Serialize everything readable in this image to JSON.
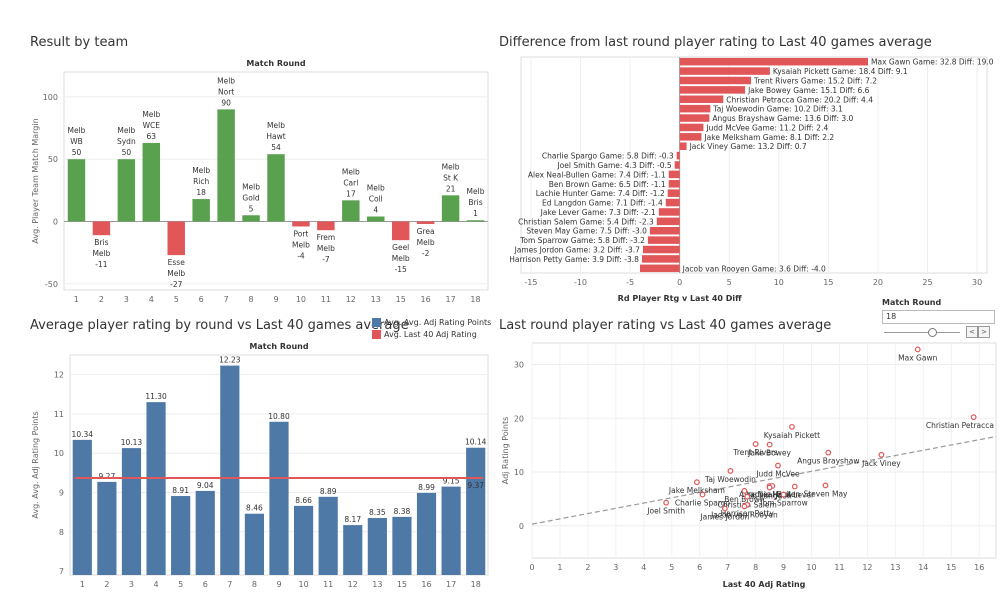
{
  "titles": {
    "tl": "Result by team",
    "tr": "Difference from last round player rating to Last 40 games average",
    "bl": "Average player rating by round vs Last 40 games average",
    "br": "Last round player rating vs Last 40 games average"
  },
  "filter": {
    "title": "Match Round",
    "value": "18",
    "prev_label": "<",
    "next_label": ">"
  },
  "chart_data": [
    {
      "type": "bar",
      "header": "Match Round",
      "ylabel": "Avg. Player Team Match Margin",
      "ylim": [
        -55,
        120
      ],
      "yticks": [
        -50,
        0,
        50,
        100
      ],
      "categories": [
        "1",
        "2",
        "3",
        "4",
        "5",
        "6",
        "7",
        "8",
        "9",
        "10",
        "11",
        "12",
        "13",
        "15",
        "16",
        "17",
        "18"
      ],
      "values": [
        50,
        -11,
        50,
        63,
        -27,
        18,
        90,
        5,
        54,
        -4,
        -7,
        17,
        4,
        -15,
        -2,
        21,
        1
      ],
      "bar_labels": [
        [
          "Melb",
          "WB",
          "50"
        ],
        [
          "Bris",
          "Melb",
          "-11"
        ],
        [
          "Melb",
          "Sydn",
          "50"
        ],
        [
          "Melb",
          "WCE",
          "63"
        ],
        [
          "Esse",
          "Melb",
          "-27"
        ],
        [
          "Melb",
          "Rich",
          "18"
        ],
        [
          "Melb",
          "Nort",
          "90"
        ],
        [
          "Melb",
          "Gold",
          "5"
        ],
        [
          "Melb",
          "Hawt",
          "54"
        ],
        [
          "Port",
          "Melb",
          "-4"
        ],
        [
          "Frem",
          "Melb",
          "-7"
        ],
        [
          "Melb",
          "Carl",
          "17"
        ],
        [
          "Melb",
          "Coll",
          "4"
        ],
        [
          "Geel",
          "Melb",
          "-15"
        ],
        [
          "Grea",
          "Melb",
          "-2"
        ],
        [
          "Melb",
          "St K",
          "21"
        ],
        [
          "Melb",
          "Bris",
          "1"
        ]
      ],
      "colors": {
        "win": "#59a14f",
        "loss": "#e15759"
      }
    },
    {
      "type": "bar",
      "orientation": "horizontal",
      "xlabel": "Rd Player Rtg v Last 40 Diff",
      "xlim": [
        -16,
        31
      ],
      "xticks": [
        -15,
        -10,
        -5,
        0,
        5,
        10,
        15,
        20,
        25,
        30
      ],
      "labels": [
        "Max Gawn Game: 32.8 Diff: 19.0",
        "Kysaiah Pickett Game: 18.4 Diff: 9.1",
        "Trent Rivers Game: 15.2 Diff: 7.2",
        "Jake Bowey Game: 15.1 Diff: 6.6",
        "Christian Petracca Game: 20.2 Diff: 4.4",
        "Taj Woewodin Game: 10.2 Diff: 3.1",
        "Angus Brayshaw Game: 13.6 Diff: 3.0",
        "Judd McVee Game: 11.2 Diff: 2.4",
        "Jake Melksham Game: 8.1 Diff: 2.2",
        "Jack Viney Game: 13.2 Diff: 0.7",
        "Charlie Spargo Game: 5.8 Diff: -0.3",
        "Joel Smith Game: 4.3 Diff: -0.5",
        "Alex Neal-Bullen Game: 7.4 Diff: -1.1",
        "Ben Brown Game: 6.5 Diff: -1.1",
        "Lachie Hunter Game: 7.4 Diff: -1.2",
        "Ed Langdon Game: 7.1 Diff: -1.4",
        "Jake Lever Game: 7.3 Diff: -2.1",
        "Christian Salem Game: 5.4 Diff: -2.3",
        "Steven May Game: 7.5 Diff: -3.0",
        "Tom Sparrow Game: 5.8 Diff: -3.2",
        "James Jordon Game: 3.2 Diff: -3.7",
        "Harrison Petty Game: 3.9 Diff: -3.8",
        "Jacob van Rooyen Game: 3.6 Diff: -4.0"
      ],
      "values": [
        19.0,
        9.1,
        7.2,
        6.6,
        4.4,
        3.1,
        3.0,
        2.4,
        2.2,
        0.7,
        -0.3,
        -0.5,
        -1.1,
        -1.1,
        -1.2,
        -1.4,
        -2.1,
        -2.3,
        -3.0,
        -3.2,
        -3.7,
        -3.8,
        -4.0
      ],
      "color": "#e15759"
    },
    {
      "type": "bar",
      "header": "Match Round",
      "ylabel": "Avg. Avg. Adj Rating Points",
      "ylim": [
        6.9,
        12.5
      ],
      "yticks": [
        7,
        8,
        9,
        10,
        11,
        12
      ],
      "categories": [
        "1",
        "2",
        "3",
        "4",
        "5",
        "6",
        "7",
        "8",
        "9",
        "10",
        "11",
        "12",
        "13",
        "15",
        "16",
        "17",
        "18"
      ],
      "values": [
        10.34,
        9.27,
        10.13,
        11.3,
        8.91,
        9.04,
        12.23,
        8.46,
        10.8,
        8.66,
        8.89,
        8.17,
        8.35,
        8.38,
        8.99,
        9.15,
        10.14
      ],
      "value_labels": [
        "10.34",
        "9.27",
        "10.13",
        "11.30",
        "8.91",
        "9.04",
        "12.23",
        "8.46",
        "10.80",
        "8.66",
        "8.89",
        "8.17",
        "8.35",
        "8.38",
        "8.99",
        "9.15",
        "10.14"
      ],
      "line": {
        "name": "Avg. Last 40 Adj Rating",
        "value": 9.37,
        "label": "9.37"
      },
      "legend": [
        {
          "name": "Avg. Avg. Adj Rating Points",
          "color": "#4e79a7"
        },
        {
          "name": "Avg. Last 40 Adj Rating",
          "color": "#e15759"
        }
      ],
      "colors": {
        "bar": "#4e79a7",
        "line": "#e15759"
      }
    },
    {
      "type": "scatter",
      "xlabel": "Last 40 Adj Rating",
      "ylabel": "Adj Rating Points",
      "xlim": [
        0,
        16.6
      ],
      "ylim": [
        -6,
        34
      ],
      "xticks": [
        0,
        1,
        2,
        3,
        4,
        5,
        6,
        7,
        8,
        9,
        10,
        11,
        12,
        13,
        14,
        15,
        16
      ],
      "yticks": [
        0,
        10,
        20,
        30
      ],
      "trendline": {
        "x": [
          0,
          16.6
        ],
        "y": [
          0.3,
          16.6
        ]
      },
      "points": [
        {
          "name": "Max Gawn",
          "x": 13.8,
          "y": 32.8
        },
        {
          "name": "Christian Petracca",
          "x": 15.8,
          "y": 20.2
        },
        {
          "name": "Kysaiah Pickett",
          "x": 9.3,
          "y": 18.4
        },
        {
          "name": "Trent Rivers",
          "x": 8.0,
          "y": 15.2
        },
        {
          "name": "Jake Bowey",
          "x": 8.5,
          "y": 15.1
        },
        {
          "name": "Angus Brayshaw",
          "x": 10.6,
          "y": 13.6
        },
        {
          "name": "Jack Viney",
          "x": 12.5,
          "y": 13.2
        },
        {
          "name": "Judd McVee",
          "x": 8.8,
          "y": 11.2
        },
        {
          "name": "Taj Woewodin",
          "x": 7.1,
          "y": 10.2
        },
        {
          "name": "Jake Melksham",
          "x": 5.9,
          "y": 8.1
        },
        {
          "name": "Alex Neal-Bullen",
          "x": 8.5,
          "y": 7.4
        },
        {
          "name": "Lachie Hunter",
          "x": 8.6,
          "y": 7.4
        },
        {
          "name": "Ed Langdon",
          "x": 8.5,
          "y": 7.1
        },
        {
          "name": "Jake Lever",
          "x": 9.4,
          "y": 7.3
        },
        {
          "name": "Steven May",
          "x": 10.5,
          "y": 7.5
        },
        {
          "name": "Ben Brown",
          "x": 7.6,
          "y": 6.5
        },
        {
          "name": "Tom Sparrow",
          "x": 9.0,
          "y": 5.8
        },
        {
          "name": "Charlie Spargo",
          "x": 6.1,
          "y": 5.8
        },
        {
          "name": "Christian Salem",
          "x": 7.7,
          "y": 5.4
        },
        {
          "name": "Joel Smith",
          "x": 4.8,
          "y": 4.3
        },
        {
          "name": "Harrison Petty",
          "x": 7.7,
          "y": 3.9
        },
        {
          "name": "Jacob van Rooyen",
          "x": 7.6,
          "y": 3.6
        },
        {
          "name": "James Jordon",
          "x": 6.9,
          "y": 3.2
        }
      ],
      "color": "#e15759"
    }
  ]
}
